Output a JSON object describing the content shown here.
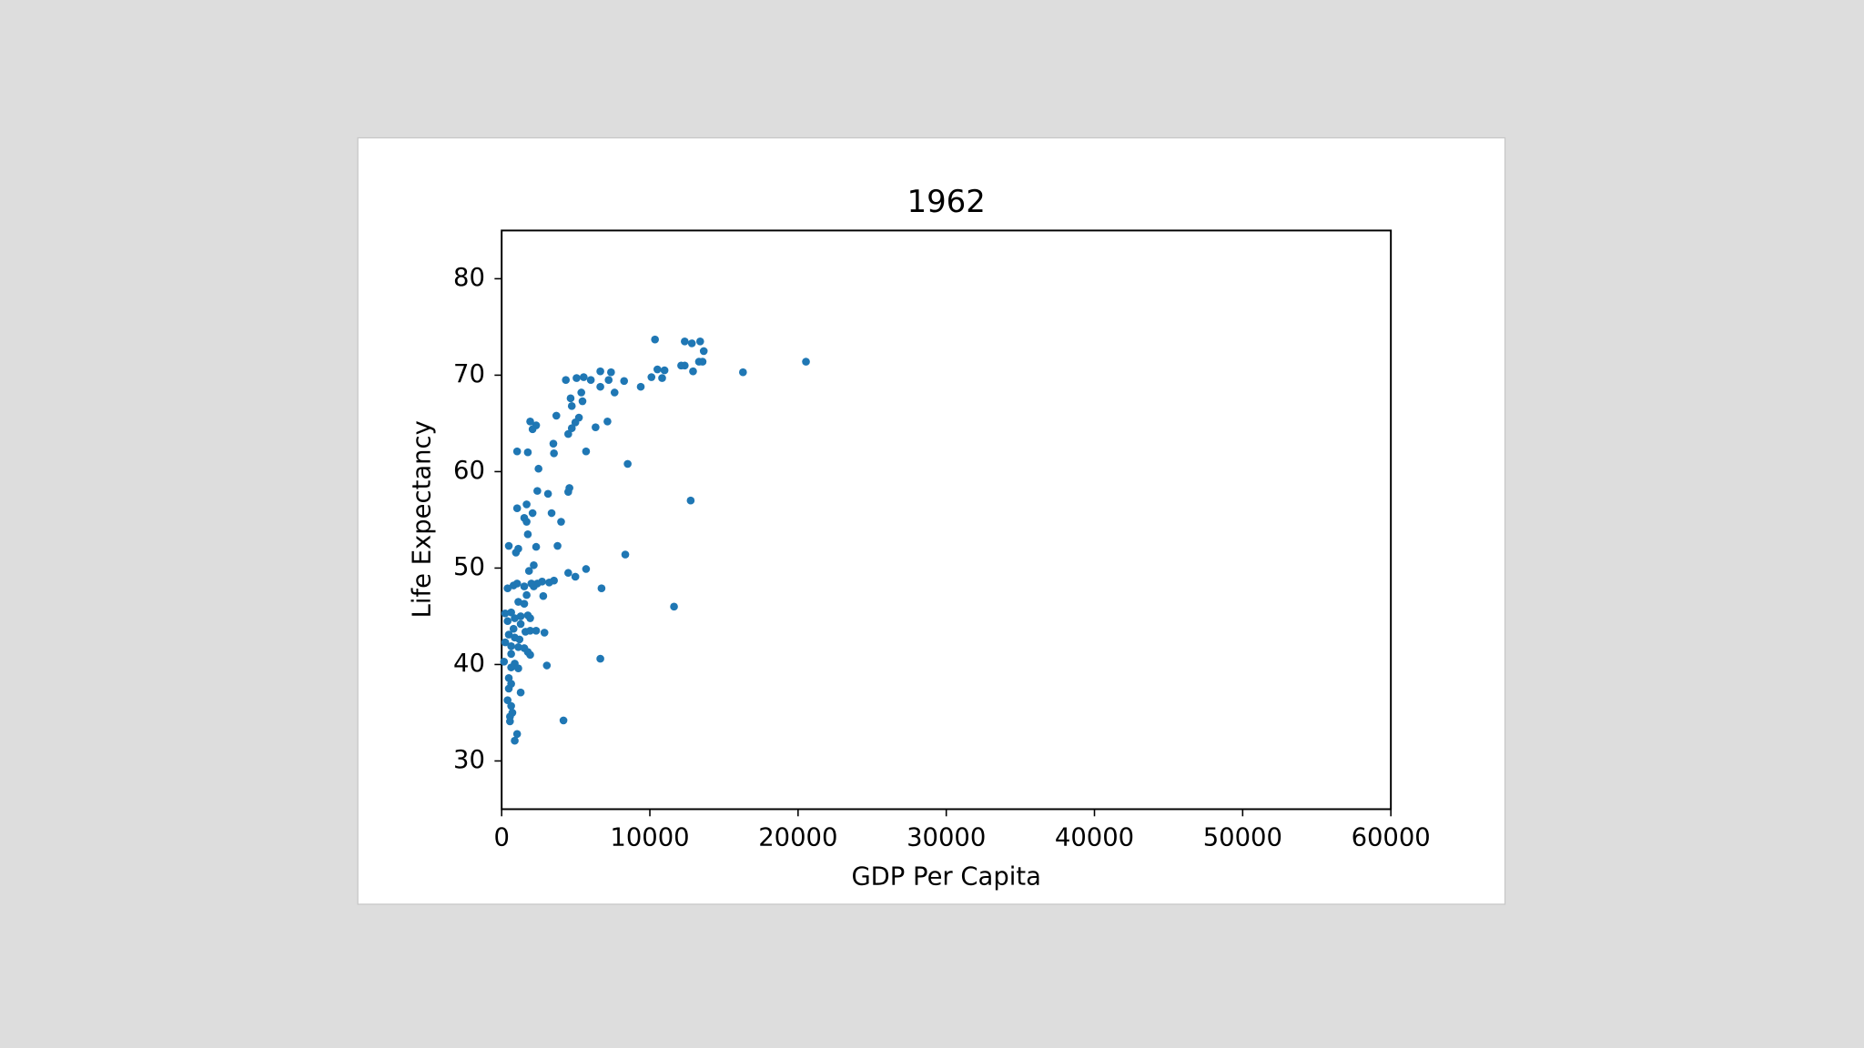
{
  "chart_data": {
    "type": "scatter",
    "title": "1962",
    "x_label": "GDP Per Capita",
    "y_label": "Life Expectancy",
    "color": "#1f77b4",
    "xlim": [
      0,
      60000
    ],
    "xticks": [
      0,
      10000,
      20000,
      30000,
      40000,
      50000,
      60000
    ],
    "ylim": [
      25,
      85
    ],
    "yticks": [
      30,
      40,
      50,
      60,
      70,
      80
    ],
    "x": [
      10347,
      12353,
      12834,
      13395,
      13636,
      13315,
      13556,
      12353,
      12112,
      12914,
      20534,
      16283,
      10107,
      10508,
      10989,
      10828,
      9385,
      8262,
      7380,
      6658,
      7219,
      7620,
      6658,
      6016,
      5535,
      5053,
      4331,
      5374,
      4652,
      5454,
      4732,
      3690,
      5214,
      4973,
      4732,
      4492,
      6337,
      7139,
      1925,
      2326,
      2086,
      1043,
      1765,
      3489,
      3529,
      5695,
      8503,
      2487,
      2407,
      3128,
      4572,
      4492,
      1684,
      1043,
      2086,
      3369,
      1524,
      1684,
      4010,
      1765,
      12754,
      481,
      1123,
      963,
      2326,
      3770,
      8342,
      1845,
      2166,
      4492,
      4973,
      5695,
      3529,
      3209,
      2727,
      2407,
      2166,
      2005,
      1524,
      802,
      1043,
      401,
      6738,
      1684,
      2807,
      1123,
      1524,
      11631,
      642,
      241,
      1283,
      1765,
      1925,
      882,
      401,
      1283,
      802,
      1604,
      2326,
      1925,
      2888,
      481,
      882,
      1203,
      241,
      642,
      1123,
      1524,
      1765,
      1925,
      642,
      160,
      882,
      642,
      1123,
      3048,
      6658,
      481,
      642,
      481,
      1283,
      401,
      642,
      722,
      561,
      561,
      4171,
      1043,
      882
    ],
    "values": [
      73.7,
      73.5,
      73.3,
      73.5,
      72.5,
      71.4,
      71.4,
      71.0,
      71.0,
      70.4,
      71.4,
      70.3,
      69.8,
      70.6,
      70.5,
      69.7,
      68.8,
      69.4,
      70.3,
      70.4,
      69.5,
      68.2,
      68.8,
      69.5,
      69.8,
      69.7,
      69.5,
      68.2,
      67.6,
      67.3,
      66.8,
      65.8,
      65.6,
      65.1,
      64.5,
      63.9,
      64.6,
      65.2,
      65.2,
      64.8,
      64.4,
      62.1,
      62.0,
      62.9,
      61.9,
      62.1,
      60.8,
      60.3,
      58.0,
      57.7,
      58.3,
      57.9,
      56.6,
      56.2,
      55.7,
      55.7,
      55.2,
      54.8,
      54.8,
      53.5,
      57.0,
      52.3,
      52.0,
      51.6,
      52.2,
      52.3,
      51.4,
      49.7,
      50.3,
      49.5,
      49.1,
      49.9,
      48.7,
      48.5,
      48.6,
      48.4,
      48.1,
      48.4,
      48.1,
      48.2,
      48.4,
      47.9,
      47.9,
      47.2,
      47.1,
      46.5,
      46.3,
      46.0,
      45.4,
      45.3,
      45.0,
      45.1,
      44.8,
      44.8,
      44.5,
      44.2,
      43.7,
      43.4,
      43.5,
      43.5,
      43.3,
      43.1,
      42.8,
      42.6,
      42.3,
      41.9,
      41.8,
      41.7,
      41.3,
      41.0,
      41.1,
      40.3,
      40.1,
      39.7,
      39.6,
      39.9,
      40.6,
      38.6,
      38.0,
      37.5,
      37.1,
      36.3,
      35.7,
      35.0,
      34.6,
      34.1,
      34.2,
      32.8,
      32.1
    ]
  }
}
